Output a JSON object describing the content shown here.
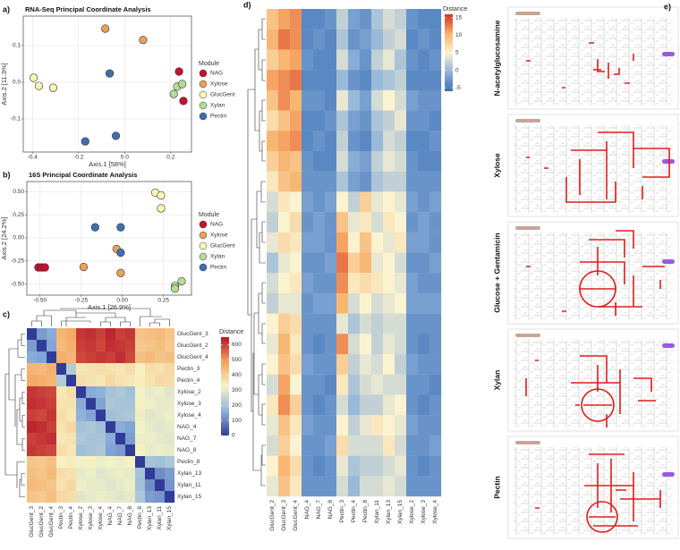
{
  "chart_data": [
    {
      "type": "scatter",
      "panel_label": "a)",
      "title": "RNA-Seq Principal Coordinate Analysis",
      "x_label": "Axis.1  [58%]",
      "y_label": "Axis.2  [11.3%]",
      "legend_title": "Module",
      "xlim": [
        -0.44,
        0.29
      ],
      "ylim": [
        -0.19,
        0.18
      ],
      "xticks": [
        -0.4,
        -0.2,
        {
          "value": 0,
          "label": "0.0"
        },
        0.2
      ],
      "yticks": [
        -0.1,
        {
          "value": 0,
          "label": "0.0"
        },
        0.1
      ],
      "grid": true,
      "series": [
        {
          "name": "NAG",
          "color": "#c8102e",
          "x": [
            0.236,
            0.255
          ],
          "values": [
            0.029,
            -0.051
          ]
        },
        {
          "name": "Xylose",
          "color": "#e8a15c",
          "x": [
            -0.084,
            0.08
          ],
          "values": [
            0.146,
            0.115
          ]
        },
        {
          "name": "GlucGent",
          "color": "#fbf5b4",
          "x": [
            -0.395,
            -0.372,
            -0.31
          ],
          "values": [
            0.012,
            -0.01,
            -0.015
          ]
        },
        {
          "name": "Xylan",
          "color": "#b5dc96",
          "x": [
            0.228,
            0.25,
            0.213
          ],
          "values": [
            -0.012,
            -0.005,
            -0.032
          ]
        },
        {
          "name": "Pectin",
          "color": "#3f6fb0",
          "x": [
            -0.065,
            -0.171,
            -0.038
          ],
          "values": [
            0.024,
            -0.161,
            -0.146
          ]
        }
      ]
    },
    {
      "type": "scatter",
      "panel_label": "b)",
      "title": "16S Principal Coordinate Analysis",
      "x_label": "Axis.1  [26.9%]",
      "y_label": "Axis.2  [24.2%]",
      "legend_title": "Module",
      "xlim": [
        -0.58,
        0.42
      ],
      "ylim": [
        -0.62,
        0.61
      ],
      "xticks": [
        {
          "value": -0.5,
          "label": "-0.50"
        },
        -0.25,
        {
          "value": 0,
          "label": "0.00"
        },
        0.25
      ],
      "yticks": [
        {
          "value": -0.5,
          "label": "-0.50"
        },
        -0.25,
        {
          "value": 0,
          "label": "0.00"
        },
        0.25,
        {
          "value": 0.5,
          "label": "0.50"
        }
      ],
      "grid": true,
      "series": [
        {
          "name": "NAG",
          "color": "#c8102e",
          "x": [
            -0.51,
            -0.49,
            -0.47
          ],
          "values": [
            -0.32,
            -0.32,
            -0.32
          ]
        },
        {
          "name": "Xylose",
          "color": "#e8a15c",
          "x": [
            -0.035,
            -0.235,
            -0.01
          ],
          "values": [
            -0.12,
            -0.315,
            -0.38
          ]
        },
        {
          "name": "GlucGent",
          "color": "#fbf5b4",
          "x": [
            0.2,
            0.235,
            0.235
          ],
          "values": [
            0.49,
            0.46,
            0.32
          ]
        },
        {
          "name": "Xylan",
          "color": "#b5dc96",
          "x": [
            0.32,
            0.36,
            0.32
          ],
          "values": [
            -0.52,
            -0.47,
            -0.55
          ]
        },
        {
          "name": "Pectin",
          "color": "#3f6fb0",
          "x": [
            -0.165,
            -0.01,
            -0.01
          ],
          "values": [
            0.115,
            0.115,
            -0.16
          ]
        }
      ]
    },
    {
      "type": "heatmap",
      "panel_label": "c)",
      "legend_title": "Distance",
      "rows": [
        "GlucGent_3",
        "GlucGent_2",
        "GlucGent_4",
        "Pectin_3",
        "Pectin_4",
        "Xylose_2",
        "Xylose_3",
        "Xylose_4",
        "NAG_4",
        "NAG_7",
        "NAG_8",
        "Pectin_8",
        "Xylan_13",
        "Xylan_11",
        "Xylan_15"
      ],
      "categories": [
        "GlucGent_3",
        "GlucGent_2",
        "GlucGent_4",
        "Pectin_3",
        "Pectin_4",
        "Xylose_2",
        "Xylose_3",
        "Xylose_4",
        "NAG_4",
        "NAG_7",
        "NAG_8",
        "Pectin_8",
        "Xylan_13",
        "Xylan_11",
        "Xylan_15"
      ],
      "zlim": [
        0,
        650
      ],
      "zticks": [
        0,
        100,
        200,
        300,
        400,
        500,
        600
      ],
      "colors": [
        "#313c99",
        "#8fb4dc",
        "#f6f4c6",
        "#f5a25c",
        "#b5142a"
      ],
      "values": [
        [
          0,
          130,
          150,
          450,
          470,
          610,
          620,
          600,
          630,
          600,
          610,
          420,
          430,
          440,
          420
        ],
        [
          130,
          0,
          140,
          440,
          460,
          600,
          610,
          590,
          620,
          610,
          600,
          410,
          420,
          430,
          410
        ],
        [
          150,
          140,
          0,
          460,
          450,
          590,
          600,
          610,
          600,
          620,
          590,
          430,
          440,
          420,
          430
        ],
        [
          450,
          440,
          460,
          0,
          220,
          350,
          360,
          370,
          360,
          350,
          370,
          330,
          370,
          360,
          380
        ],
        [
          470,
          460,
          450,
          220,
          0,
          370,
          360,
          350,
          380,
          360,
          350,
          340,
          360,
          380,
          370
        ],
        [
          610,
          600,
          590,
          350,
          370,
          0,
          150,
          160,
          200,
          210,
          190,
          320,
          300,
          310,
          290
        ],
        [
          620,
          610,
          600,
          360,
          360,
          150,
          0,
          140,
          210,
          200,
          200,
          330,
          310,
          300,
          300
        ],
        [
          600,
          590,
          610,
          370,
          350,
          160,
          140,
          0,
          190,
          200,
          210,
          310,
          290,
          300,
          310
        ],
        [
          630,
          620,
          600,
          360,
          380,
          200,
          210,
          190,
          0,
          150,
          140,
          320,
          300,
          290,
          300
        ],
        [
          600,
          610,
          620,
          350,
          360,
          210,
          200,
          200,
          150,
          0,
          130,
          310,
          310,
          300,
          290
        ],
        [
          610,
          600,
          590,
          370,
          350,
          190,
          200,
          210,
          140,
          130,
          0,
          330,
          300,
          310,
          300
        ],
        [
          420,
          410,
          430,
          330,
          340,
          320,
          330,
          310,
          320,
          310,
          330,
          0,
          200,
          190,
          210
        ],
        [
          430,
          420,
          440,
          370,
          360,
          300,
          310,
          290,
          300,
          310,
          300,
          200,
          0,
          110,
          130
        ],
        [
          440,
          430,
          420,
          360,
          380,
          310,
          300,
          300,
          290,
          300,
          310,
          190,
          110,
          0,
          120
        ],
        [
          420,
          410,
          430,
          380,
          370,
          290,
          300,
          310,
          300,
          290,
          300,
          210,
          130,
          120,
          0
        ]
      ]
    },
    {
      "type": "heatmap",
      "panel_label": "d)",
      "legend_title": "Distance",
      "categories": [
        "GlucGent_2",
        "GlucGent_3",
        "GlucGent_4",
        "NAG_4",
        "NAG_7",
        "NAG_8",
        "Pectin_3",
        "Pectin_4",
        "Pectin_8",
        "Xylan_11",
        "Xylan_13",
        "Xylan_15",
        "Xylose_2",
        "Xylose_3",
        "Xylose_4"
      ],
      "zlim": [
        -6,
        16
      ],
      "zticks": [
        -5,
        0,
        5,
        10,
        15
      ],
      "colors": [
        "#3b6fb6",
        "#8fb3da",
        "#fbf3d0",
        "#f8b06a",
        "#d7301f"
      ],
      "values": [
        [
          9,
          11,
          12,
          -4,
          -4,
          -3,
          2,
          -2,
          -3,
          1,
          3,
          2,
          -3,
          -4,
          -4
        ],
        [
          10,
          13,
          12,
          -4,
          -3,
          -4,
          1,
          -3,
          -2,
          0,
          2,
          3,
          -4,
          -3,
          -4
        ],
        [
          8,
          10,
          11,
          -3,
          -4,
          -4,
          3,
          -1,
          -3,
          2,
          4,
          1,
          -3,
          -4,
          -3
        ],
        [
          11,
          12,
          13,
          -4,
          -4,
          -4,
          0,
          -3,
          -4,
          0,
          1,
          2,
          -4,
          -4,
          -4
        ],
        [
          9,
          12,
          10,
          -3,
          -3,
          -4,
          4,
          0,
          -2,
          3,
          5,
          3,
          -2,
          -3,
          -3
        ],
        [
          7,
          9,
          11,
          -4,
          -4,
          -3,
          1,
          -2,
          -3,
          1,
          2,
          4,
          -3,
          -3,
          -4
        ],
        [
          10,
          11,
          12,
          -4,
          -3,
          -4,
          2,
          -3,
          -4,
          0,
          3,
          2,
          -4,
          -4,
          -3
        ],
        [
          8,
          10,
          9,
          -3,
          -4,
          -4,
          3,
          -1,
          -2,
          2,
          4,
          3,
          -3,
          -4,
          -4
        ],
        [
          6,
          9,
          10,
          -3,
          -3,
          -3,
          1,
          -2,
          -3,
          1,
          2,
          2,
          -3,
          -3,
          -3
        ],
        [
          3,
          6,
          5,
          -2,
          -3,
          -2,
          5,
          2,
          8,
          4,
          5,
          4,
          -2,
          -3,
          -2
        ],
        [
          2,
          5,
          7,
          -3,
          -2,
          -3,
          9,
          4,
          6,
          3,
          6,
          5,
          -3,
          -2,
          -3
        ],
        [
          4,
          7,
          6,
          -2,
          -2,
          -3,
          11,
          5,
          9,
          5,
          4,
          6,
          -2,
          -2,
          -3
        ],
        [
          1,
          4,
          5,
          -3,
          -3,
          -2,
          13,
          8,
          10,
          4,
          5,
          3,
          -3,
          -3,
          -2
        ],
        [
          3,
          5,
          6,
          -2,
          -3,
          -3,
          12,
          6,
          7,
          6,
          5,
          4,
          -2,
          -3,
          -3
        ],
        [
          2,
          4,
          4,
          -3,
          -2,
          -2,
          10,
          3,
          5,
          3,
          4,
          5,
          -2,
          -2,
          -2
        ],
        [
          5,
          8,
          7,
          -3,
          -3,
          -3,
          4,
          1,
          3,
          2,
          3,
          3,
          -3,
          -3,
          -3
        ],
        [
          4,
          10,
          6,
          -3,
          -4,
          -3,
          12,
          3,
          5,
          2,
          4,
          3,
          -3,
          -4,
          -3
        ],
        [
          5,
          9,
          7,
          -2,
          -3,
          -3,
          8,
          2,
          4,
          3,
          5,
          2,
          -2,
          -3,
          -3
        ],
        [
          3,
          11,
          5,
          -3,
          -3,
          -4,
          6,
          1,
          3,
          4,
          3,
          3,
          -3,
          -3,
          -4
        ],
        [
          6,
          12,
          8,
          -3,
          -4,
          -3,
          3,
          0,
          2,
          2,
          4,
          5,
          -3,
          -4,
          -3
        ],
        [
          4,
          9,
          6,
          -2,
          -3,
          -3,
          5,
          2,
          4,
          6,
          5,
          4,
          -2,
          -3,
          -3
        ],
        [
          3,
          8,
          5,
          -3,
          -3,
          -2,
          7,
          3,
          3,
          3,
          6,
          3,
          -3,
          -3,
          -2
        ],
        [
          5,
          10,
          7,
          -3,
          -4,
          -3,
          4,
          1,
          2,
          2,
          3,
          4,
          -3,
          -4,
          -3
        ],
        [
          4,
          9,
          6,
          -3,
          -3,
          -3,
          3,
          0,
          3,
          3,
          4,
          3,
          -3,
          -3,
          -3
        ]
      ]
    }
  ],
  "pathway_maps": {
    "panel_label": "e)",
    "conditions": [
      "N-acetylglucosamine",
      "Xylose",
      "Glucose + Gentamicin",
      "Xylan",
      "Pectin"
    ]
  }
}
